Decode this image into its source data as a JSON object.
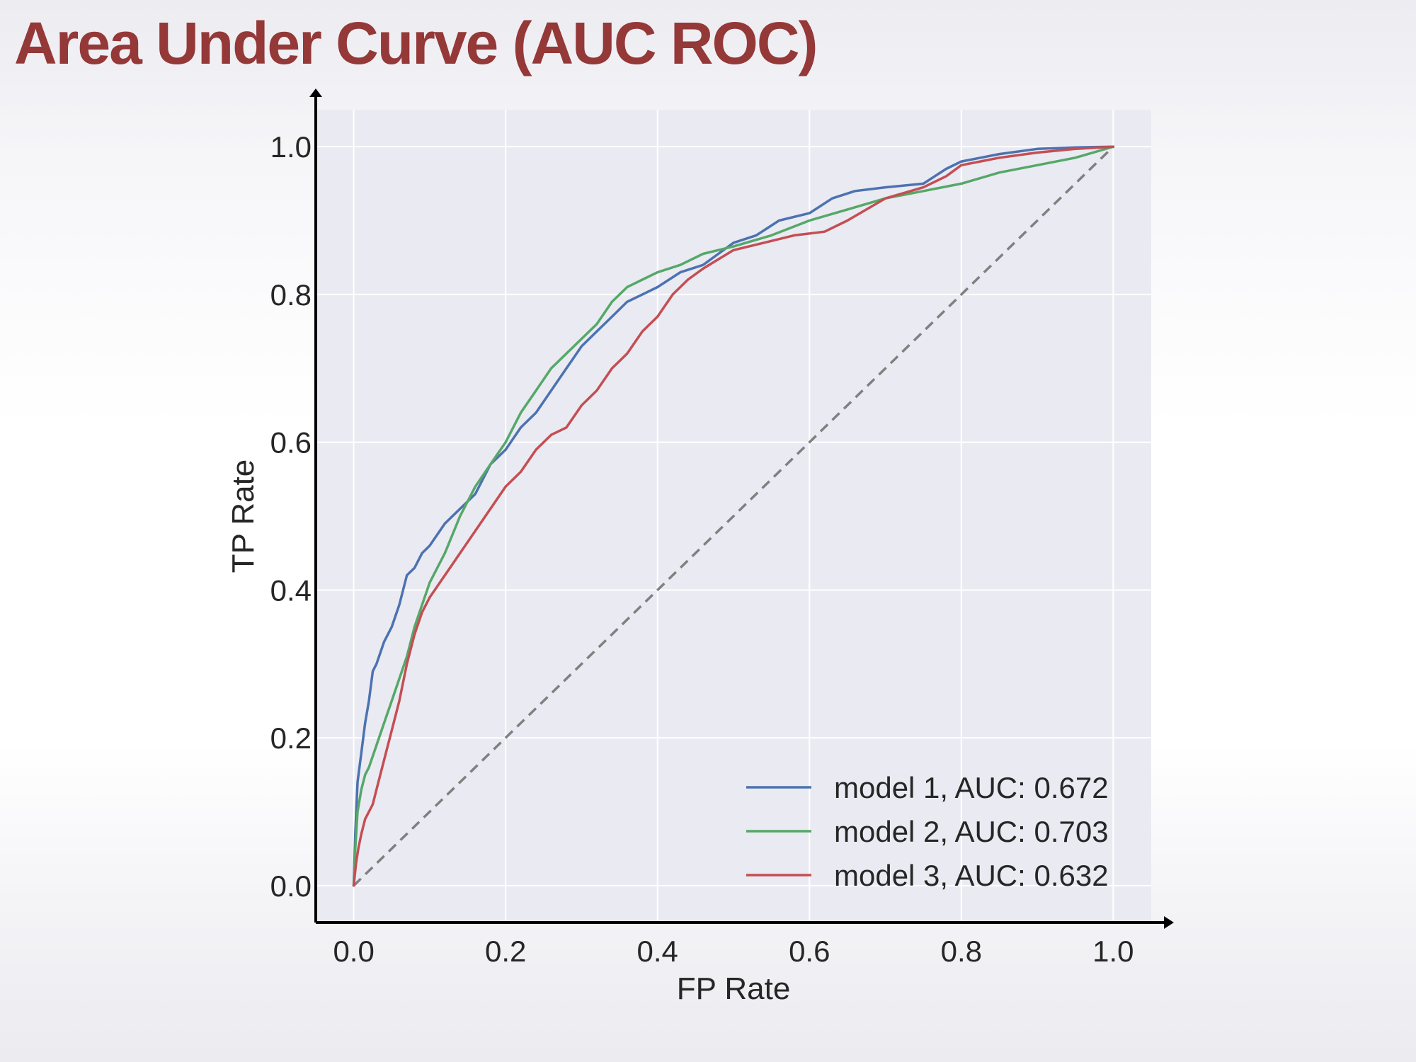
{
  "slide": {
    "title": "Area Under Curve (AUC ROC)"
  },
  "colors": {
    "title": "#943838",
    "plot_background": "#eaeaf2",
    "grid": "#ffffff",
    "axis": "#000000",
    "text": "#262626",
    "diagonal": "#808080"
  },
  "chart_data": {
    "type": "line",
    "title": "",
    "xlabel": "FP Rate",
    "ylabel": "TP Rate",
    "xlim": [
      -0.05,
      1.05
    ],
    "ylim": [
      -0.05,
      1.05
    ],
    "xticks": [
      0.0,
      0.2,
      0.4,
      0.6,
      0.8,
      1.0
    ],
    "yticks": [
      0.0,
      0.2,
      0.4,
      0.6,
      0.8,
      1.0
    ],
    "xtick_labels": [
      "0.0",
      "0.2",
      "0.4",
      "0.6",
      "0.8",
      "1.0"
    ],
    "ytick_labels": [
      "0.0",
      "0.2",
      "0.4",
      "0.6",
      "0.8",
      "1.0"
    ],
    "grid": true,
    "legend_position": "lower-right",
    "diagonal": {
      "x": [
        0.0,
        1.0
      ],
      "y": [
        0.0,
        1.0
      ],
      "style": "dashed",
      "color": "#808080"
    },
    "series": [
      {
        "name": "model 1, AUC: 0.672",
        "color": "#4c72b0",
        "x": [
          0.0,
          0.002,
          0.005,
          0.01,
          0.015,
          0.02,
          0.025,
          0.03,
          0.04,
          0.05,
          0.06,
          0.07,
          0.08,
          0.09,
          0.1,
          0.12,
          0.14,
          0.16,
          0.18,
          0.2,
          0.22,
          0.24,
          0.26,
          0.28,
          0.3,
          0.32,
          0.34,
          0.36,
          0.38,
          0.4,
          0.43,
          0.46,
          0.5,
          0.53,
          0.56,
          0.6,
          0.63,
          0.66,
          0.7,
          0.75,
          0.78,
          0.8,
          0.85,
          0.9,
          0.95,
          1.0
        ],
        "y": [
          0.0,
          0.07,
          0.14,
          0.18,
          0.22,
          0.25,
          0.29,
          0.3,
          0.33,
          0.35,
          0.38,
          0.42,
          0.43,
          0.45,
          0.46,
          0.49,
          0.51,
          0.53,
          0.57,
          0.59,
          0.62,
          0.64,
          0.67,
          0.7,
          0.73,
          0.75,
          0.77,
          0.79,
          0.8,
          0.81,
          0.83,
          0.84,
          0.87,
          0.88,
          0.9,
          0.91,
          0.93,
          0.94,
          0.945,
          0.95,
          0.97,
          0.98,
          0.99,
          0.997,
          0.999,
          1.0
        ]
      },
      {
        "name": "model 2, AUC: 0.703",
        "color": "#55a868",
        "x": [
          0.0,
          0.002,
          0.005,
          0.01,
          0.015,
          0.02,
          0.03,
          0.04,
          0.05,
          0.06,
          0.07,
          0.08,
          0.09,
          0.1,
          0.12,
          0.14,
          0.16,
          0.18,
          0.2,
          0.22,
          0.24,
          0.26,
          0.28,
          0.3,
          0.32,
          0.34,
          0.36,
          0.38,
          0.4,
          0.43,
          0.46,
          0.5,
          0.55,
          0.6,
          0.65,
          0.7,
          0.75,
          0.8,
          0.85,
          0.9,
          0.95,
          1.0
        ],
        "y": [
          0.0,
          0.05,
          0.1,
          0.13,
          0.15,
          0.16,
          0.19,
          0.22,
          0.25,
          0.28,
          0.31,
          0.35,
          0.38,
          0.41,
          0.45,
          0.5,
          0.54,
          0.57,
          0.6,
          0.64,
          0.67,
          0.7,
          0.72,
          0.74,
          0.76,
          0.79,
          0.81,
          0.82,
          0.83,
          0.84,
          0.855,
          0.865,
          0.88,
          0.9,
          0.915,
          0.93,
          0.94,
          0.95,
          0.965,
          0.975,
          0.985,
          1.0
        ]
      },
      {
        "name": "model 3, AUC: 0.632",
        "color": "#c44e52",
        "x": [
          0.0,
          0.003,
          0.006,
          0.01,
          0.015,
          0.02,
          0.025,
          0.03,
          0.04,
          0.05,
          0.06,
          0.07,
          0.08,
          0.09,
          0.1,
          0.12,
          0.14,
          0.16,
          0.18,
          0.2,
          0.22,
          0.24,
          0.26,
          0.28,
          0.3,
          0.32,
          0.34,
          0.36,
          0.38,
          0.4,
          0.42,
          0.44,
          0.46,
          0.5,
          0.54,
          0.58,
          0.62,
          0.65,
          0.7,
          0.75,
          0.78,
          0.8,
          0.85,
          0.9,
          0.95,
          1.0
        ],
        "y": [
          0.0,
          0.03,
          0.05,
          0.07,
          0.09,
          0.1,
          0.11,
          0.13,
          0.17,
          0.21,
          0.25,
          0.3,
          0.34,
          0.37,
          0.39,
          0.42,
          0.45,
          0.48,
          0.51,
          0.54,
          0.56,
          0.59,
          0.61,
          0.62,
          0.65,
          0.67,
          0.7,
          0.72,
          0.75,
          0.77,
          0.8,
          0.82,
          0.835,
          0.86,
          0.87,
          0.88,
          0.885,
          0.9,
          0.93,
          0.945,
          0.96,
          0.975,
          0.985,
          0.992,
          0.997,
          1.0
        ]
      }
    ]
  }
}
